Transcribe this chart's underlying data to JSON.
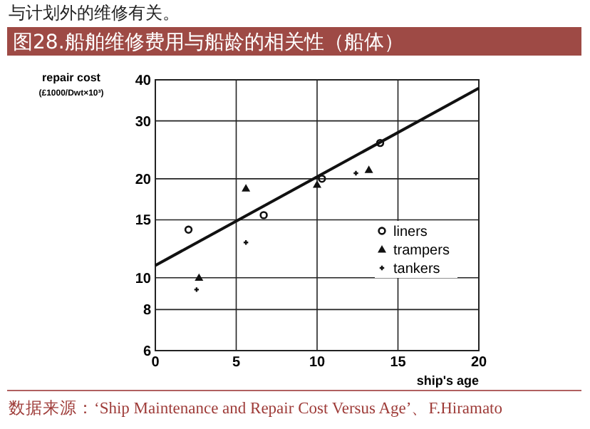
{
  "chart_data": {
    "type": "scatter",
    "title": "图28.船舶维修费用与船龄的相关性（船体）",
    "xlabel": "ship's age",
    "ylabel": "repair cost (£1000/Dwt×10³)",
    "annotations": [
      "与计划外的维修有关。",
      "数据来源：‘Ship Maintenance and Repair Cost Versus Age’、F.Hiramato"
    ],
    "series": [
      {
        "name": "liners",
        "color": "#111111",
        "marker": "circle",
        "x": [
          2.05,
          6.7,
          10.3,
          13.9
        ],
        "values": [
          14,
          15.5,
          20,
          25.7
        ]
      },
      {
        "name": "trampers",
        "color": "#111111",
        "marker": "triangle",
        "x": [
          2.7,
          5.6,
          10,
          13.2
        ],
        "values": [
          10,
          18.7,
          19.2,
          21.3
        ]
      },
      {
        "name": "tankers",
        "color": "#111111",
        "marker": "cross",
        "x": [
          2.55,
          5.6,
          12.4
        ],
        "values": [
          9.2,
          12.8,
          20.8
        ]
      },
      {
        "type": "line",
        "color": "#111111",
        "marker": "none",
        "x": [
          0,
          20
        ],
        "values": [
          10.9,
          37.7
        ]
      }
    ],
    "xlim": [
      0,
      20
    ],
    "xticks": [
      0,
      5,
      10,
      15,
      20
    ],
    "ylim": [
      6,
      40
    ],
    "yticks": [
      6,
      8,
      10,
      15,
      20,
      30,
      40
    ],
    "log": "y",
    "grid": true,
    "legend": "right"
  }
}
